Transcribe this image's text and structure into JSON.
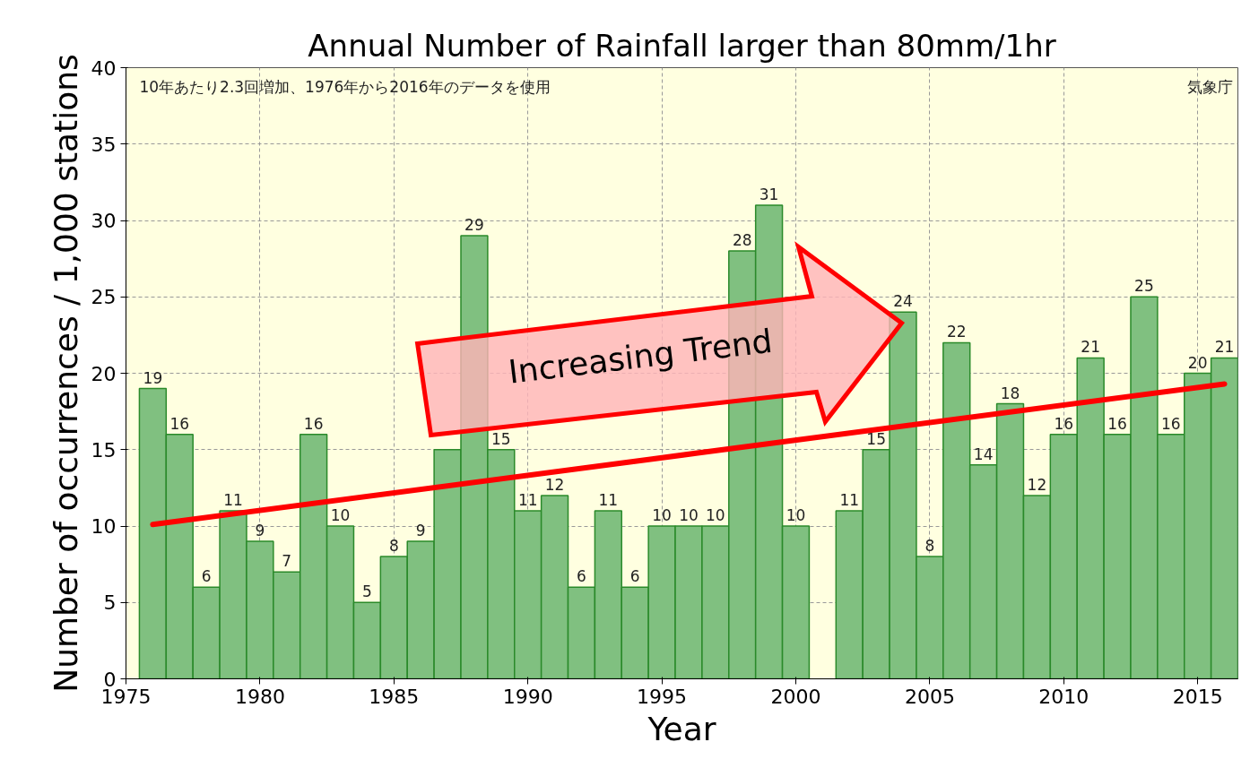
{
  "chart_data": {
    "type": "bar",
    "title": "Annual Number of Rainfall larger than 80mm/1hr",
    "xlabel": "Year",
    "ylabel": "Number of occurrences / 1,000 stations",
    "x": [
      1976,
      1977,
      1978,
      1979,
      1980,
      1981,
      1982,
      1983,
      1984,
      1985,
      1986,
      1987,
      1988,
      1989,
      1990,
      1991,
      1992,
      1993,
      1994,
      1995,
      1996,
      1997,
      1998,
      1999,
      2000,
      2001,
      2002,
      2003,
      2004,
      2005,
      2006,
      2007,
      2008,
      2009,
      2010,
      2011,
      2012,
      2013,
      2014,
      2015,
      2016
    ],
    "series": [
      {
        "color": "#80c080",
        "values": [
          19,
          16,
          6,
          11,
          9,
          7,
          16,
          10,
          5,
          8,
          9,
          15,
          29,
          15,
          11,
          12,
          6,
          11,
          6,
          10,
          10,
          10,
          28,
          31,
          10,
          null,
          11,
          15,
          24,
          8,
          22,
          14,
          18,
          12,
          16,
          21,
          16,
          25,
          16,
          20,
          21
        ],
        "value_labels": [
          "19",
          "16",
          "6",
          "11",
          "9",
          "7",
          "16",
          "10",
          "5",
          "8",
          "9",
          null,
          "29",
          "15",
          "11",
          "12",
          "6",
          "11",
          "6",
          "10",
          "10",
          "10",
          "28",
          "31",
          "10",
          null,
          "11",
          "15",
          "24",
          "8",
          "22",
          "14",
          "18",
          "12",
          "16",
          "21",
          "16",
          "25",
          "16",
          "20",
          "21"
        ]
      },
      {
        "type": "line",
        "color": "#ff0000",
        "x": [
          1976,
          2016
        ],
        "values": [
          10.1,
          19.3
        ]
      }
    ],
    "xlim": [
      1975,
      2016.5
    ],
    "ylim": [
      0,
      40
    ],
    "xticks": [
      1975,
      1980,
      1985,
      1990,
      1995,
      2000,
      2005,
      2010,
      2015
    ],
    "yticks": [
      0,
      5,
      10,
      15,
      20,
      25,
      30,
      35,
      40
    ],
    "grid": true,
    "annotations": [
      "10年あたり2.3回増加、1976年から2016年のデータを使用",
      "気象庁",
      "Increasing Trend"
    ]
  }
}
